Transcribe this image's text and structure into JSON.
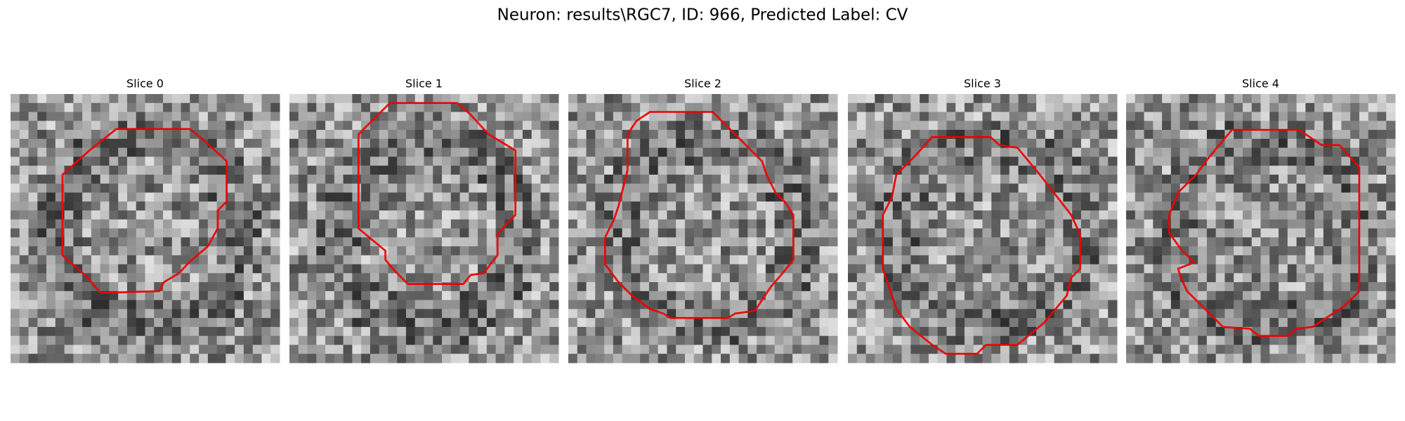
{
  "title": "Neuron: results\\RGC7, ID: 966, Predicted Label: CV",
  "panels": [
    {
      "title": "Slice 0"
    },
    {
      "title": "Slice 1"
    },
    {
      "title": "Slice 2"
    },
    {
      "title": "Slice 3"
    },
    {
      "title": "Slice 4"
    }
  ]
}
